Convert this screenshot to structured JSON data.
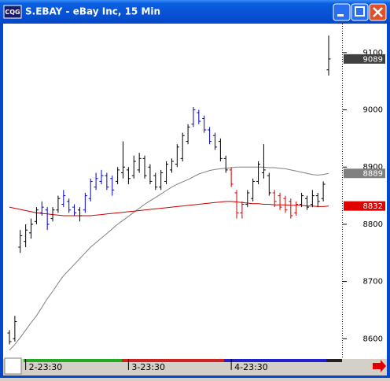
{
  "window": {
    "icon_label": "CQG",
    "title": "S.EBAY - eBay Inc, 15 Min"
  },
  "chart_data": {
    "type": "ohlc",
    "categories": [
      null,
      null,
      null,
      "2-23:30",
      null,
      null,
      null,
      null,
      null,
      null,
      null,
      null,
      null,
      null,
      null,
      null,
      null,
      null,
      null,
      null,
      null,
      null,
      "3-23:30",
      null,
      null,
      null,
      null,
      null,
      null,
      null,
      null,
      null,
      null,
      null,
      null,
      null,
      null,
      null,
      null,
      null,
      null,
      "4-23:30",
      null,
      null,
      null,
      null,
      null,
      null,
      null,
      null,
      null,
      null,
      null,
      null,
      null,
      null,
      null,
      null,
      null,
      null
    ],
    "high": [
      8615,
      8640,
      8790,
      8800,
      8810,
      8830,
      8840,
      8830,
      8830,
      8850,
      8860,
      8845,
      8835,
      8830,
      8855,
      8880,
      8890,
      8895,
      8890,
      8885,
      8900,
      8945,
      8900,
      8920,
      8925,
      8920,
      8905,
      8890,
      8895,
      8910,
      8915,
      8940,
      8960,
      8975,
      9005,
      9000,
      8990,
      8970,
      8960,
      8950,
      8920,
      8900,
      8860,
      8840,
      8860,
      8880,
      8910,
      8940,
      8890,
      8860,
      8855,
      8850,
      8845,
      8840,
      8855,
      8850,
      8860,
      8855,
      8875,
      9130
    ],
    "low": [
      8590,
      8595,
      8750,
      8760,
      8775,
      8800,
      8815,
      8790,
      8805,
      8820,
      8830,
      8820,
      8815,
      8805,
      8820,
      8840,
      8860,
      8870,
      8860,
      8850,
      8870,
      8880,
      8870,
      8880,
      8890,
      8880,
      8870,
      8860,
      8860,
      8870,
      8890,
      8900,
      8910,
      8940,
      8970,
      8975,
      8960,
      8940,
      8930,
      8910,
      8890,
      8865,
      8810,
      8810,
      8830,
      8840,
      8870,
      8880,
      8850,
      8830,
      8825,
      8820,
      8810,
      8815,
      8830,
      8825,
      8830,
      8830,
      8840,
      9060
    ],
    "open": [
      8610,
      8600,
      8760,
      8770,
      8785,
      8805,
      8820,
      8825,
      8810,
      8825,
      8835,
      8840,
      8830,
      8825,
      8825,
      8845,
      8865,
      8875,
      8885,
      8880,
      8875,
      8890,
      8895,
      8885,
      8895,
      8915,
      8900,
      8885,
      8865,
      8875,
      8895,
      8905,
      8915,
      8945,
      8975,
      8995,
      8985,
      8965,
      8955,
      8945,
      8915,
      8895,
      8855,
      8820,
      8835,
      8845,
      8875,
      8890,
      8885,
      8855,
      8850,
      8845,
      8840,
      8820,
      8835,
      8845,
      8835,
      8850,
      8845,
      9070
    ],
    "close": [
      8595,
      8630,
      8780,
      8790,
      8800,
      8825,
      8830,
      8800,
      8825,
      8845,
      8850,
      8825,
      8820,
      8815,
      8850,
      8875,
      8880,
      8885,
      8865,
      8860,
      8895,
      8900,
      8880,
      8910,
      8915,
      8885,
      8875,
      8865,
      8890,
      8905,
      8910,
      8935,
      8955,
      8970,
      9000,
      8980,
      8965,
      8945,
      8935,
      8915,
      8895,
      8870,
      8820,
      8835,
      8855,
      8875,
      8905,
      8895,
      8855,
      8840,
      8830,
      8825,
      8815,
      8835,
      8850,
      8830,
      8850,
      8840,
      8870,
      9089
    ],
    "bar_colors": [
      "#000000",
      "#000000",
      "#000000",
      "#000000",
      "#000000",
      "#000000",
      "#0000cc",
      "#0000cc",
      "#000000",
      "#000000",
      "#0000cc",
      "#0000cc",
      "#0000cc",
      "#000000",
      "#0000cc",
      "#0000cc",
      "#0000cc",
      "#0000cc",
      "#0000cc",
      "#0000cc",
      "#000000",
      "#000000",
      "#000000",
      "#000000",
      "#000000",
      "#000000",
      "#000000",
      "#000000",
      "#000000",
      "#000000",
      "#000000",
      "#000000",
      "#000000",
      "#000000",
      "#0000cc",
      "#0000cc",
      "#0000cc",
      "#0000cc",
      "#0000cc",
      "#000000",
      "#000000",
      "#cc0000",
      "#cc0000",
      "#cc0000",
      "#000000",
      "#000000",
      "#000000",
      "#000000",
      "#000000",
      "#cc0000",
      "#cc0000",
      "#cc0000",
      "#cc0000",
      "#cc0000",
      "#000000",
      "#000000",
      "#000000",
      "#000000",
      "#000000",
      "#000000"
    ],
    "lines": [
      {
        "color": "#808080",
        "values": [
          8580,
          8590,
          8602,
          8615,
          8628,
          8640,
          8655,
          8670,
          8683,
          8697,
          8710,
          8720,
          8730,
          8740,
          8750,
          8760,
          8768,
          8776,
          8784,
          8792,
          8800,
          8807,
          8814,
          8821,
          8828,
          8835,
          8841,
          8847,
          8853,
          8859,
          8865,
          8870,
          8874,
          8878,
          8883,
          8888,
          8891,
          8894,
          8896,
          8897,
          8898,
          8899,
          8900,
          8900,
          8900,
          8900,
          8900,
          8900,
          8899,
          8899,
          8898,
          8897,
          8895,
          8893,
          8891,
          8889,
          8887,
          8886,
          8887,
          8889
        ]
      },
      {
        "color": "#cc0000",
        "values": [
          8830,
          8828,
          8826,
          8824,
          8822,
          8820,
          8819,
          8818,
          8817,
          8816,
          8815,
          8815,
          8815,
          8815,
          8815,
          8815,
          8816,
          8817,
          8818,
          8819,
          8820,
          8821,
          8822,
          8823,
          8824,
          8825,
          8826,
          8827,
          8828,
          8829,
          8830,
          8831,
          8832,
          8833,
          8834,
          8835,
          8836,
          8837,
          8838,
          8839,
          8840,
          8840,
          8839,
          8838,
          8837,
          8836,
          8836,
          8835,
          8835,
          8834,
          8834,
          8834,
          8833,
          8833,
          8833,
          8832,
          8832,
          8831,
          8831,
          8832
        ]
      }
    ],
    "price_tags": [
      {
        "value": 9089,
        "color": "#404040"
      },
      {
        "value": 8889,
        "color": "#808080"
      },
      {
        "value": 8832,
        "color": "#e00000"
      }
    ],
    "ylim": [
      8566,
      9148
    ],
    "yticks": [
      8600,
      8700,
      8800,
      8900,
      9000,
      9100
    ]
  }
}
